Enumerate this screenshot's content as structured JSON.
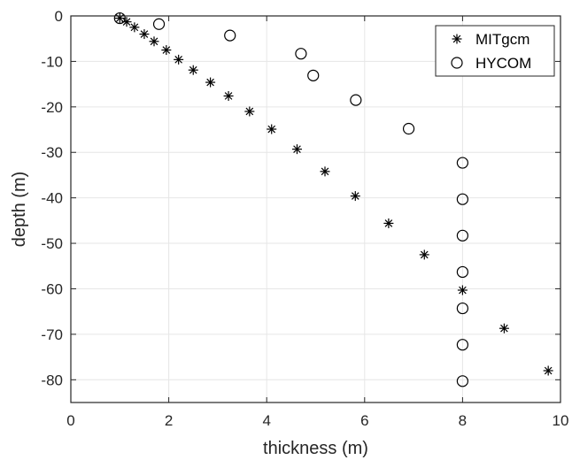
{
  "chart_data": {
    "type": "scatter",
    "xlabel": "thickness (m)",
    "ylabel": "depth (m)",
    "xlim": [
      0,
      10
    ],
    "ylim": [
      -85,
      0
    ],
    "xticks": [
      0,
      2,
      4,
      6,
      8,
      10
    ],
    "yticks": [
      0,
      -10,
      -20,
      -30,
      -40,
      -50,
      -60,
      -70,
      -80
    ],
    "xtick_labels": [
      "0",
      "2",
      "4",
      "6",
      "8",
      "10"
    ],
    "ytick_labels": [
      "0",
      "-10",
      "-20",
      "-30",
      "-40",
      "-50",
      "-60",
      "-70",
      "-80"
    ],
    "grid": true,
    "legend_position": "top-right",
    "series": [
      {
        "name": "MITgcm",
        "marker": "asterisk",
        "color": "#000000",
        "points": [
          [
            1.0,
            -0.5
          ],
          [
            1.14,
            -1.3
          ],
          [
            1.3,
            -2.5
          ],
          [
            1.5,
            -4.0
          ],
          [
            1.7,
            -5.6
          ],
          [
            1.95,
            -7.5
          ],
          [
            2.2,
            -9.6
          ],
          [
            2.5,
            -11.9
          ],
          [
            2.85,
            -14.6
          ],
          [
            3.22,
            -17.6
          ],
          [
            3.65,
            -21.0
          ],
          [
            4.1,
            -24.9
          ],
          [
            4.62,
            -29.3
          ],
          [
            5.19,
            -34.2
          ],
          [
            5.81,
            -39.6
          ],
          [
            6.49,
            -45.6
          ],
          [
            7.22,
            -52.5
          ],
          [
            8.0,
            -60.3
          ],
          [
            8.85,
            -68.7
          ],
          [
            9.75,
            -78.0
          ]
        ]
      },
      {
        "name": "HYCOM",
        "marker": "circle",
        "color": "#000000",
        "points": [
          [
            1.0,
            -0.5
          ],
          [
            1.8,
            -1.8
          ],
          [
            3.25,
            -4.3
          ],
          [
            4.7,
            -8.3
          ],
          [
            4.95,
            -13.1
          ],
          [
            5.82,
            -18.5
          ],
          [
            6.9,
            -24.8
          ],
          [
            8.0,
            -32.3
          ],
          [
            8.0,
            -40.3
          ],
          [
            8.0,
            -48.3
          ],
          [
            8.0,
            -56.3
          ],
          [
            8.0,
            -64.3
          ],
          [
            8.0,
            -72.3
          ],
          [
            8.0,
            -80.3
          ]
        ]
      }
    ]
  }
}
